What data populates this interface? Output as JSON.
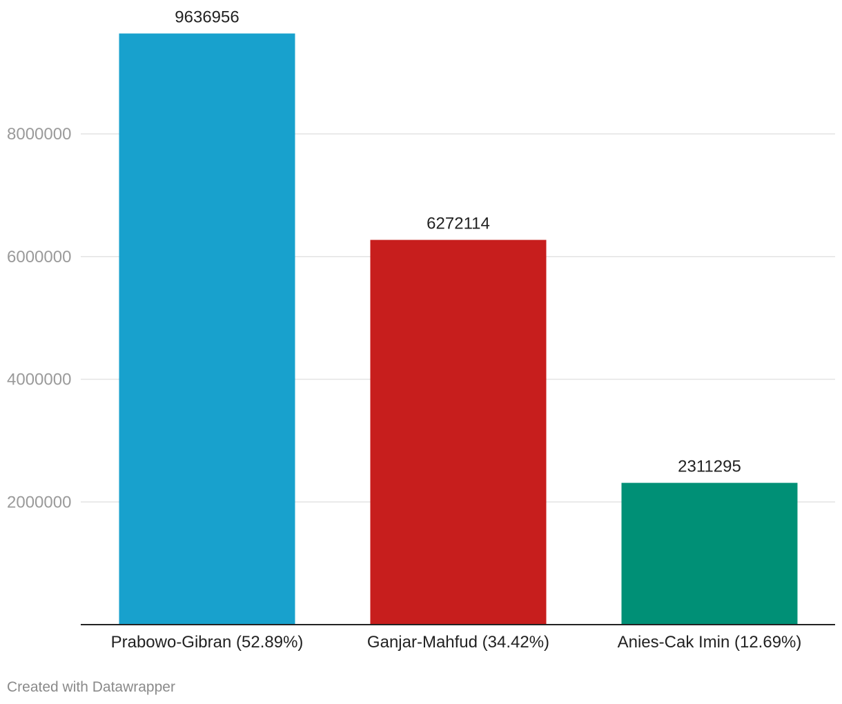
{
  "chart_data": {
    "type": "bar",
    "title": "",
    "xlabel": "",
    "ylabel": "",
    "categories": [
      "Prabowo-Gibran (52.89%)",
      "Ganjar-Mahfud (34.42%)",
      "Anies-Cak Imin (12.69%)"
    ],
    "values": [
      9636956,
      6272114,
      2311295
    ],
    "value_labels": [
      "9636956",
      "6272114",
      "2311295"
    ],
    "colors": [
      "#18a1cd",
      "#c71e1d",
      "#009076"
    ],
    "ylim": [
      0,
      10000000
    ],
    "yticks": [
      2000000,
      4000000,
      6000000,
      8000000
    ],
    "ytick_labels": [
      "2000000",
      "4000000",
      "6000000",
      "8000000"
    ],
    "grid": true,
    "legend": "none"
  },
  "footer": {
    "credit": "Created with Datawrapper"
  }
}
